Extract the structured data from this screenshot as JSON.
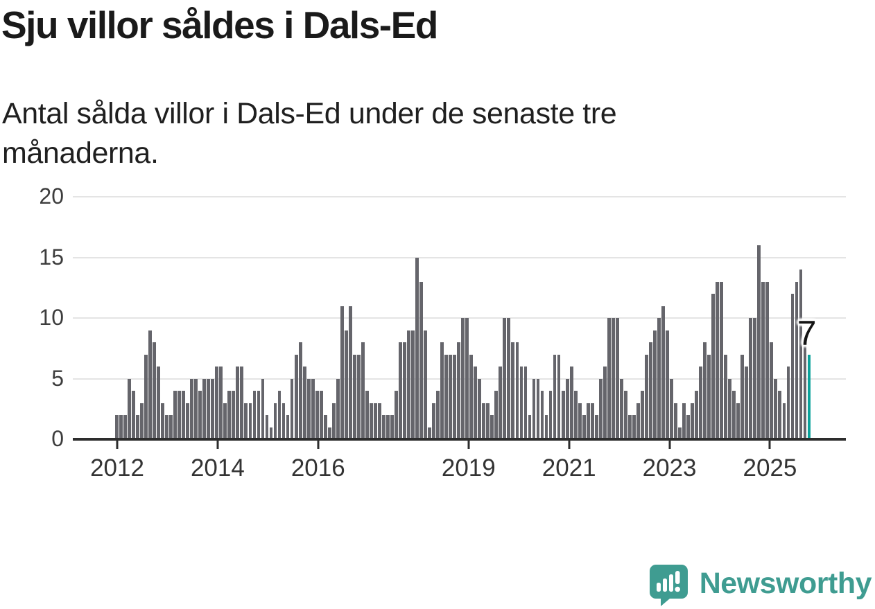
{
  "header": {
    "title": "Sju villor såldes i Dals-Ed",
    "subtitle": "Antal sålda villor i Dals-Ed under de senaste tre månaderna."
  },
  "chart_data": {
    "type": "bar",
    "title": "Sju villor såldes i Dals-Ed",
    "subtitle": "Antal sålda villor i Dals-Ed under de senaste tre månaderna.",
    "ylabel": "",
    "xlabel": "",
    "ylim": [
      0,
      20
    ],
    "yticks": [
      0,
      5,
      10,
      15,
      20
    ],
    "grid": "horizontal",
    "bar_color": "#65656b",
    "highlight_color": "#0aa29b",
    "axis_color": "#2d2d2d",
    "gridline_color": "#e4e4e4",
    "annotation": "7",
    "latest_value": 7,
    "xticks": [
      {
        "label": "2012",
        "index": 1
      },
      {
        "label": "2014",
        "index": 25.1
      },
      {
        "label": "2016",
        "index": 49.2
      },
      {
        "label": "2019",
        "index": 85.3
      },
      {
        "label": "2021",
        "index": 109.4
      },
      {
        "label": "2023",
        "index": 133.5
      },
      {
        "label": "2025",
        "index": 157.6
      }
    ],
    "values": [
      2,
      2,
      2,
      5,
      4,
      2,
      3,
      7,
      9,
      8,
      6,
      3,
      2,
      2,
      4,
      4,
      4,
      3,
      5,
      5,
      4,
      5,
      5,
      5,
      6,
      6,
      3,
      4,
      4,
      6,
      6,
      3,
      3,
      4,
      4,
      5,
      2,
      1,
      3,
      4,
      3,
      2,
      5,
      7,
      8,
      6,
      5,
      5,
      4,
      4,
      2,
      1,
      3,
      5,
      11,
      9,
      11,
      7,
      7,
      8,
      4,
      3,
      3,
      3,
      2,
      2,
      2,
      4,
      8,
      8,
      9,
      9,
      15,
      13,
      9,
      1,
      3,
      4,
      8,
      7,
      7,
      7,
      8,
      10,
      10,
      7,
      6,
      5,
      3,
      3,
      2,
      4,
      6,
      10,
      10,
      8,
      8,
      6,
      6,
      2,
      5,
      5,
      4,
      2,
      4,
      7,
      7,
      4,
      5,
      6,
      4,
      3,
      2,
      3,
      3,
      2,
      5,
      6,
      10,
      10,
      10,
      5,
      4,
      2,
      2,
      3,
      4,
      7,
      8,
      9,
      10,
      11,
      9,
      5,
      3,
      1,
      3,
      2,
      3,
      4,
      6,
      8,
      7,
      12,
      13,
      13,
      7,
      5,
      4,
      3,
      7,
      6,
      10,
      10,
      16,
      13,
      13,
      8,
      5,
      4,
      3,
      6,
      12,
      13,
      14,
      8,
      7
    ]
  },
  "footer": {
    "brand": "Newsworthy",
    "brand_color": "#3f9c91",
    "logo_icon": "newsworthy-speech-bubble-chart-icon"
  }
}
